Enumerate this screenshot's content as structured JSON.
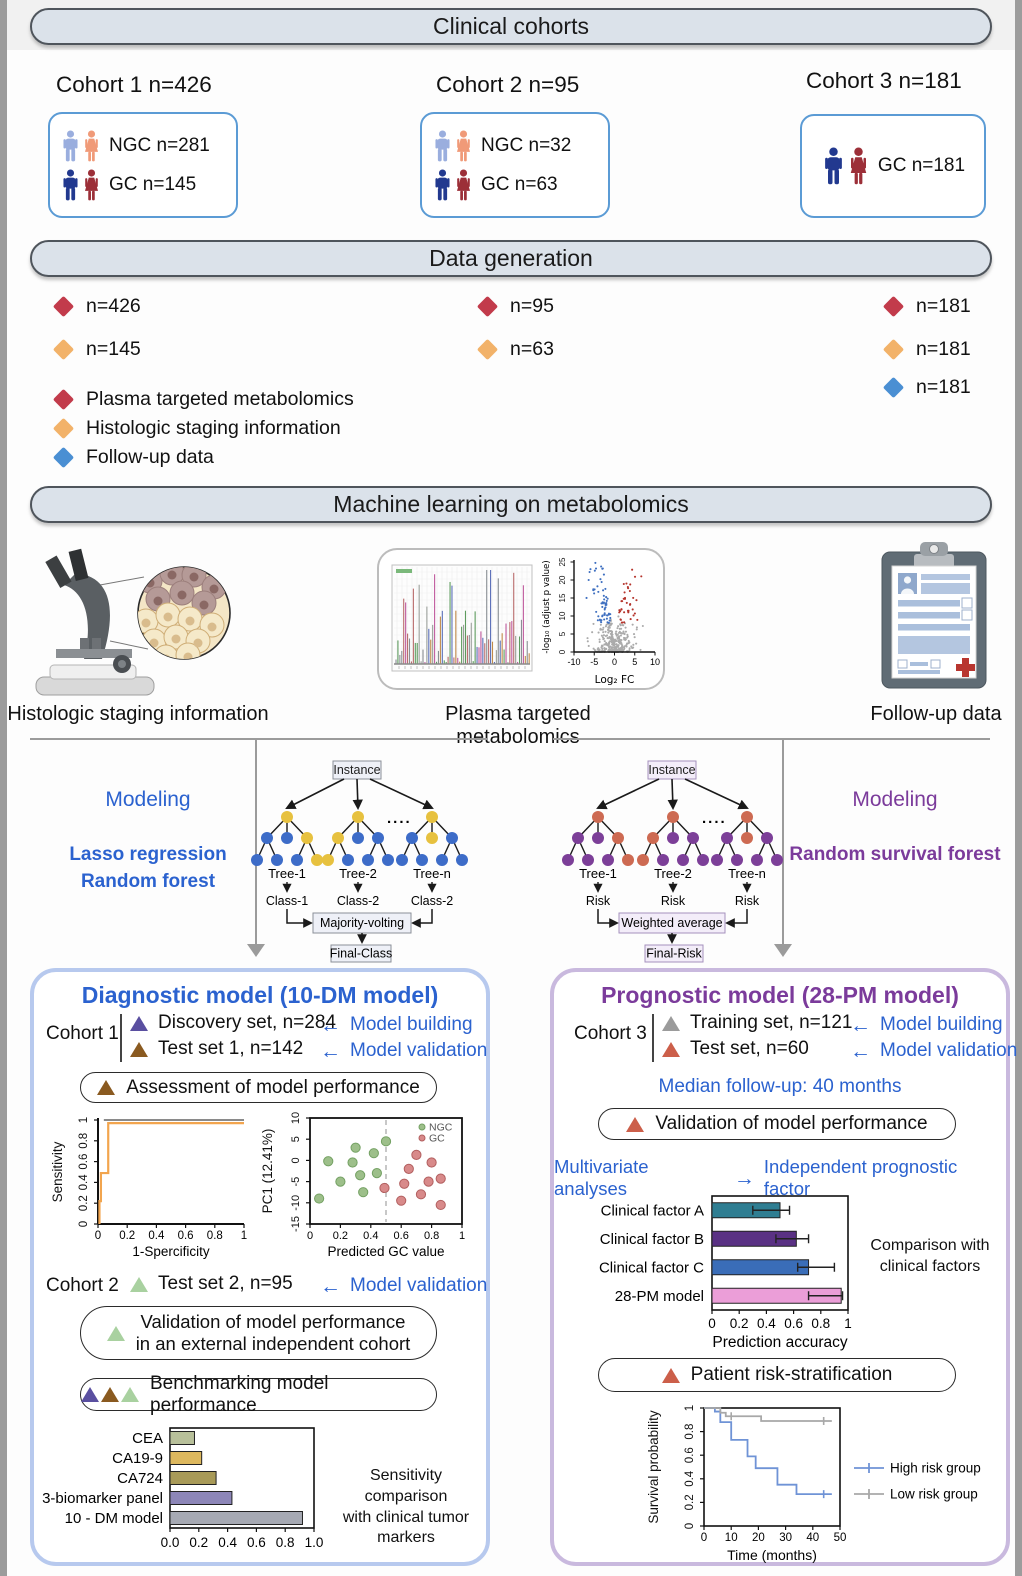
{
  "colors": {
    "banner_bg": "#dbe2ea",
    "banner_border": "#4f555c",
    "card_border": "#5b9bd5",
    "accent_blue": "#2b62cf",
    "accent_purple": "#7b3b9b",
    "diamond_red": "#c23b4b",
    "diamond_orange": "#f2b269",
    "diamond_blue": "#4a8fd3",
    "ngc_male": "#9aaede",
    "ngc_female": "#f09a78",
    "gc_male": "#22398f",
    "gc_female": "#9c2f38",
    "tri_discovery": "#5a4fa0",
    "tri_test1": "#8a5a20",
    "tri_test2": "#a9d1a0",
    "tri_training": "#9b9b9b",
    "tri_test3": "#cc5f4a",
    "tree_left_a": "#e7c13f",
    "tree_left_b": "#3d6cc8",
    "tree_right_a": "#cd6a52",
    "tree_right_b": "#7c3f98",
    "panel_left_border": "#b7c9ee",
    "panel_right_border": "#c9b9de",
    "connector": "#9b9b9b",
    "box_left_fill": "#eef0f7",
    "box_left_stroke": "#8a8f98",
    "box_right_fill": "#f3edf9",
    "box_right_stroke": "#a591bd"
  },
  "banners": {
    "clinical": "Clinical cohorts",
    "data_generation": "Data generation",
    "machine_learning": "Machine learning on metabolomics"
  },
  "cohorts": {
    "c1_title": "Cohort 1 n=426",
    "c1_ngc": "NGC n=281",
    "c1_gc": "GC n=145",
    "c2_title": "Cohort 2 n=95",
    "c2_ngc": "NGC n=32",
    "c2_gc": "GC n=63",
    "c3_title": "Cohort 3 n=181",
    "c3_gc": "GC n=181"
  },
  "data_generation": {
    "col1_red": "n=426",
    "col1_orange": "n=145",
    "col2_red": "n=95",
    "col2_orange": "n=63",
    "col3_red": "n=181",
    "col3_orange": "n=181",
    "col3_blue": "n=181",
    "legend_red": "Plasma targeted metabolomics",
    "legend_orange": "Histologic staging information",
    "legend_blue": "Follow-up data"
  },
  "ml_section": {
    "histology_label": "Histologic staging information",
    "metabolomics_label": "Plasma targeted metabolomics",
    "followup_label": "Follow-up data"
  },
  "modeling_left": {
    "title": "Modeling",
    "method1": "Lasso regression",
    "method2": "Random forest"
  },
  "modeling_right": {
    "title": "Modeling",
    "method1": "Random survival forest"
  },
  "tree_left": {
    "instance": "Instance",
    "dots": "....",
    "tree_labels": [
      "Tree-1",
      "Tree-2",
      "Tree-n"
    ],
    "outputs": [
      "Class-1",
      "Class-2",
      "Class-2"
    ],
    "combine": "Majority-volting",
    "final": "Final-Class"
  },
  "tree_right": {
    "instance": "Instance",
    "dots": "....",
    "tree_labels": [
      "Tree-1",
      "Tree-2",
      "Tree-n"
    ],
    "outputs": [
      "Risk",
      "Risk",
      "Risk"
    ],
    "combine": "Weighted average",
    "final": "Final-Risk"
  },
  "diagnostic": {
    "title": "Diagnostic model (10-DM model)",
    "cohort1_label": "Cohort 1",
    "discovery_label": "Discovery set, n=284",
    "discovery_note": "Model building",
    "test1_label": "Test set 1, n=142",
    "test1_note": "Model validation",
    "arrow_left": "←",
    "assessment": "Assessment of model performance",
    "cohort2_label": "Cohort 2",
    "test2_label": "Test set 2, n=95",
    "test2_note": "Model validation",
    "validation_line1": "Validation of model performance",
    "validation_line2": "in an external independent cohort",
    "benchmarking": "Benchmarking model performance",
    "sens_note1": "Sensitivity comparison",
    "sens_note2": "with clinical tumor markers"
  },
  "prognostic": {
    "title": "Prognostic model (28-PM model)",
    "cohort3_label": "Cohort 3",
    "training_label": "Training set, n=121",
    "training_note": "Model building",
    "test_label": "Test set, n=60",
    "test_note": "Model validation",
    "arrow_left": "←",
    "arrow_right": "→",
    "median_followup": "Median follow-up: 40 months",
    "validation": "Validation of model performance",
    "multivariate": "Multivariate analyses",
    "multivariate_result": "Independent prognostic factor",
    "comp_note1": "Comparison with",
    "comp_note2": "clinical factors",
    "risk_strat": "Patient risk-stratification"
  },
  "chart_data": [
    {
      "name": "volcano",
      "type": "scatter",
      "xlabel": "Log₂ FC",
      "ylabel": "-log₁₀ (adjust p value)",
      "xticks": [
        "-10",
        "-5",
        "0",
        "5",
        "10"
      ],
      "yticks": [
        "0",
        "5",
        "10",
        "15",
        "20",
        "25"
      ],
      "xlim": [
        -10,
        10
      ],
      "ylim": [
        0,
        25
      ],
      "legend_note": "blue = down-regulated, red = up-regulated, gray = not significant"
    },
    {
      "name": "roc",
      "type": "line",
      "xlabel": "1-Spercificity",
      "ylabel": "Sensitivity",
      "xticks": [
        "0",
        "0.2",
        "0.4",
        "0.6",
        "0.8",
        "1"
      ],
      "yticks": [
        "0",
        "0.2",
        "0.4",
        "0.6",
        "0.8",
        "1"
      ],
      "xlim": [
        0,
        1
      ],
      "ylim": [
        0,
        1
      ],
      "series": [
        {
          "name": "reference",
          "color": "#8a8a8a",
          "points": [
            [
              0.04,
              1
            ],
            [
              1,
              1
            ]
          ]
        },
        {
          "name": "ROC curve",
          "color": "#f2a54e",
          "points": [
            [
              0.01,
              0
            ],
            [
              0.01,
              0.22
            ],
            [
              0.02,
              0.22
            ],
            [
              0.02,
              0.49
            ],
            [
              0.07,
              0.49
            ],
            [
              0.07,
              0.97
            ],
            [
              1,
              0.97
            ]
          ]
        }
      ]
    },
    {
      "name": "pc1_scatter",
      "type": "scatter",
      "xlabel": "Predicted GC value",
      "ylabel": "PC1 (12.41%)",
      "xticks": [
        "0",
        "0.2",
        "0.4",
        "0.6",
        "0.8",
        "1"
      ],
      "yticks": [
        "-15",
        "-10",
        "-5",
        "0",
        "5",
        "10"
      ],
      "xlim": [
        0,
        1
      ],
      "ylim": [
        -15,
        10
      ],
      "threshold_x": 0.5,
      "series": [
        {
          "name": "NGC",
          "color": "#9dbf8a",
          "stroke": "#74a163",
          "points": [
            [
              0.06,
              -9
            ],
            [
              0.12,
              -0.2
            ],
            [
              0.2,
              -5
            ],
            [
              0.28,
              -0.5
            ],
            [
              0.3,
              3
            ],
            [
              0.33,
              -3.5
            ],
            [
              0.35,
              -7.5
            ],
            [
              0.42,
              1.7
            ],
            [
              0.44,
              -3
            ],
            [
              0.5,
              4.5
            ]
          ]
        },
        {
          "name": "GC",
          "color": "#d88a8a",
          "stroke": "#b25f5f",
          "points": [
            [
              0.49,
              -6.5
            ],
            [
              0.6,
              -9.5
            ],
            [
              0.62,
              -5.5
            ],
            [
              0.65,
              -2
            ],
            [
              0.7,
              1.3
            ],
            [
              0.73,
              -8
            ],
            [
              0.78,
              -5
            ],
            [
              0.8,
              -0.5
            ],
            [
              0.86,
              -4.3
            ],
            [
              0.86,
              -10.5
            ]
          ]
        }
      ]
    },
    {
      "name": "marker_sensitivity",
      "type": "bar",
      "orientation": "horizontal",
      "categories": [
        "CEA",
        "CA19-9",
        "CA724",
        "3-biomarker panel",
        "10 - DM model"
      ],
      "values": [
        0.17,
        0.22,
        0.32,
        0.43,
        0.92
      ],
      "bar_colors": [
        "#b8c09a",
        "#ddb85e",
        "#a89a58",
        "#8d86b8",
        "#a6a9b3"
      ],
      "xticks": [
        "0.0",
        "0.2",
        "0.4",
        "0.6",
        "0.8",
        "1.0"
      ],
      "xlim": [
        0,
        1
      ]
    },
    {
      "name": "prediction_accuracy",
      "type": "bar",
      "orientation": "horizontal",
      "categories": [
        "Clinical factor A",
        "Clinical factor B",
        "Clinical factor C",
        "28-PM model"
      ],
      "values": [
        0.5,
        0.62,
        0.71,
        0.95
      ],
      "error_low": [
        0.3,
        0.47,
        0.63,
        0.71
      ],
      "error_high": [
        0.57,
        0.71,
        0.9,
        0.96
      ],
      "bar_colors": [
        "#2f7e92",
        "#5a3184",
        "#3a6db8",
        "#eb9ed8"
      ],
      "xticks": [
        "0",
        "0.2",
        "0.4",
        "0.6",
        "0.8",
        "1"
      ],
      "xlim": [
        0,
        1
      ],
      "xlabel": "Prediction accuracy"
    },
    {
      "name": "survival",
      "type": "line",
      "xlabel": "Time (months)",
      "ylabel": "Survival probability",
      "xticks": [
        "0",
        "10",
        "20",
        "30",
        "40",
        "50"
      ],
      "yticks": [
        "0",
        "0.2",
        "0.4",
        "0.6",
        "0.8",
        "1"
      ],
      "xlim": [
        0,
        50
      ],
      "ylim": [
        0,
        1
      ],
      "series": [
        {
          "name": "High risk group",
          "color": "#6f93d6",
          "points": [
            [
              0,
              1
            ],
            [
              4,
              1
            ],
            [
              4,
              0.97
            ],
            [
              6,
              0.97
            ],
            [
              6,
              0.88
            ],
            [
              10,
              0.88
            ],
            [
              10,
              0.73
            ],
            [
              16,
              0.73
            ],
            [
              16,
              0.59
            ],
            [
              19,
              0.59
            ],
            [
              19,
              0.49
            ],
            [
              27,
              0.49
            ],
            [
              27,
              0.35
            ],
            [
              34,
              0.35
            ],
            [
              34,
              0.27
            ],
            [
              47,
              0.27
            ]
          ],
          "censors": [
            [
              44,
              0.27
            ]
          ]
        },
        {
          "name": "Low risk group",
          "color": "#a8a8a8",
          "points": [
            [
              0,
              1
            ],
            [
              6,
              1
            ],
            [
              6,
              0.96
            ],
            [
              8,
              0.96
            ],
            [
              8,
              0.93
            ],
            [
              21,
              0.93
            ],
            [
              21,
              0.89
            ],
            [
              47,
              0.89
            ]
          ],
          "censors": [
            [
              10,
              0.93
            ],
            [
              44,
              0.89
            ]
          ]
        }
      ]
    }
  ]
}
